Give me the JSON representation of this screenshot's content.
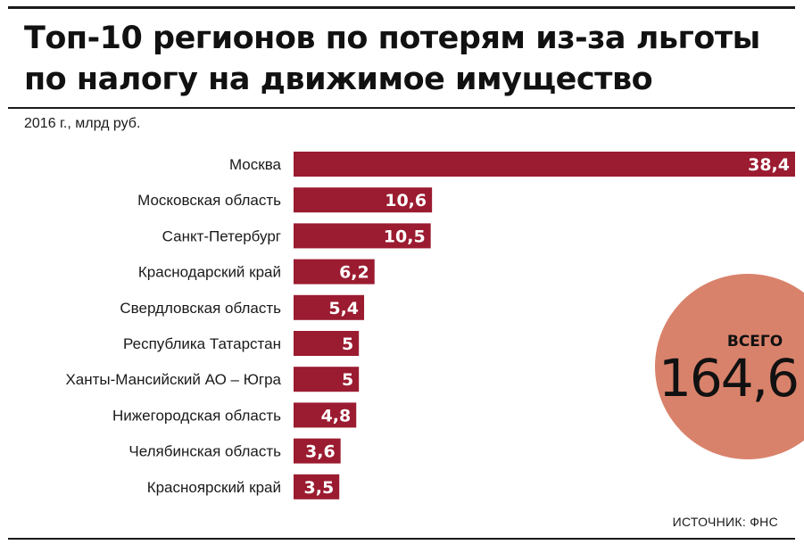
{
  "header": {
    "title_line1": "Топ-10 регионов по потерям из-за льготы",
    "title_line2": "по налогу на движимое имущество",
    "subtitle": "2016 г., млрд руб."
  },
  "total": {
    "label": "ВСЕГО",
    "value": "164,6"
  },
  "footer": {
    "source": "ИСТОЧНИК: ФНС"
  },
  "colors": {
    "bar": "#9b1b30",
    "circle": "#d9826b"
  },
  "chart_data": {
    "type": "bar",
    "orientation": "horizontal",
    "title": "Топ-10 регионов по потерям из-за льготы по налогу на движимое имущество",
    "subtitle": "2016 г., млрд руб.",
    "xlabel": "",
    "ylabel": "",
    "xlim": [
      0,
      38.4
    ],
    "grid": false,
    "categories": [
      "Москва",
      "Московская область",
      "Санкт-Петербург",
      "Краснодарский край",
      "Свердловская область",
      "Республика Татарстан",
      "Ханты-Мансийский АО – Югра",
      "Нижегородская область",
      "Челябинская область",
      "Красноярский край"
    ],
    "values": [
      38.4,
      10.6,
      10.5,
      6.2,
      5.4,
      5,
      5,
      4.8,
      3.6,
      3.5
    ],
    "value_labels": [
      "38,4",
      "10,6",
      "10,5",
      "6,2",
      "5,4",
      "5",
      "5",
      "4,8",
      "3,6",
      "3,5"
    ]
  }
}
